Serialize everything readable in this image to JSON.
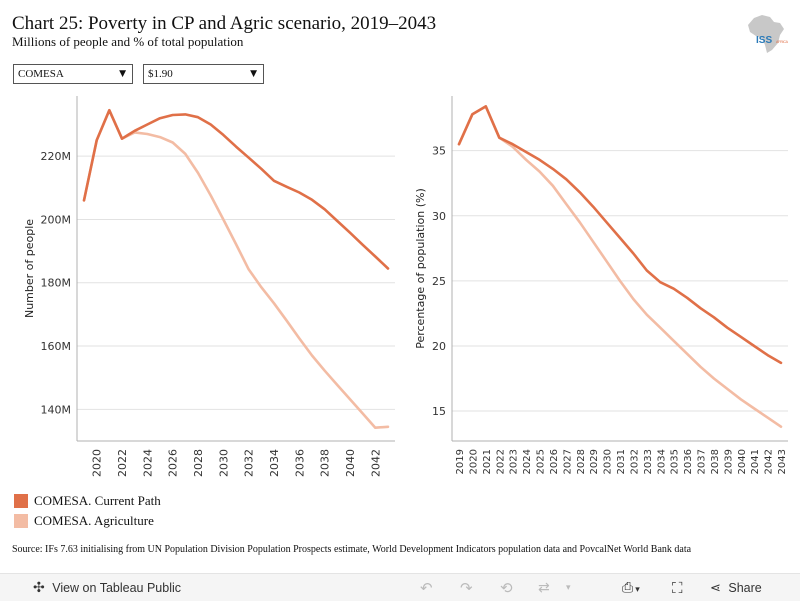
{
  "header": {
    "title": "Chart 25: Poverty in CP and Agric scenario, 2019–2043",
    "subtitle": "Millions of people and % of total population",
    "logo_text": "ISS",
    "logo_text_suffix": "AFRICA"
  },
  "filters": {
    "region": "COMESA",
    "poverty_line": "$1.90"
  },
  "colors": {
    "current_path": "#e07048",
    "agriculture": "#f3bca4",
    "gridline": "#e2e2e2",
    "axis": "#b0b0b0"
  },
  "legend": [
    {
      "label": "COMESA. Current Path",
      "color": "#e07048"
    },
    {
      "label": "COMESA. Agriculture",
      "color": "#f3bca4"
    }
  ],
  "source": "Source: IFs 7.63 initialising from UN Population Division Population Prospects estimate, World Development Indicators population data and PovcalNet World Bank data",
  "footer": {
    "view_label": "View on Tableau Public",
    "share_label": "Share"
  },
  "chart_data": [
    {
      "type": "line",
      "ylabel": "Number of people",
      "xlim": [
        2019,
        2043
      ],
      "ylim": [
        130,
        239
      ],
      "y_ticks": [
        140,
        160,
        180,
        200,
        220
      ],
      "y_tick_labels": [
        "140M",
        "160M",
        "180M",
        "200M",
        "220M"
      ],
      "x_ticks": [
        2020,
        2022,
        2024,
        2026,
        2028,
        2030,
        2032,
        2034,
        2036,
        2038,
        2040,
        2042
      ],
      "grid": true,
      "series": [
        {
          "name": "COMESA. Current Path",
          "x": [
            2019,
            2020,
            2021,
            2022,
            2023,
            2024,
            2025,
            2026,
            2027,
            2028,
            2029,
            2030,
            2031,
            2032,
            2033,
            2034,
            2035,
            2036,
            2037,
            2038,
            2039,
            2040,
            2041,
            2042,
            2043
          ],
          "values": [
            206,
            225,
            234.5,
            225.5,
            228,
            230,
            232,
            233,
            233.2,
            232.3,
            230,
            226.7,
            223,
            219.5,
            216,
            212.2,
            210.3,
            208.5,
            206.2,
            203.2,
            199.5,
            195.8,
            192,
            188.3,
            184.5
          ]
        },
        {
          "name": "COMESA. Agriculture",
          "x": [
            2019,
            2020,
            2021,
            2022,
            2023,
            2024,
            2025,
            2026,
            2027,
            2028,
            2029,
            2030,
            2031,
            2032,
            2033,
            2034,
            2035,
            2036,
            2037,
            2038,
            2039,
            2040,
            2041,
            2042,
            2043
          ],
          "values": [
            206,
            225,
            234.5,
            225.5,
            227.5,
            227,
            226,
            224.3,
            220.7,
            214.7,
            207.6,
            200,
            192.2,
            184.2,
            178.6,
            173.5,
            168,
            162.4,
            157,
            152.2,
            147.7,
            143.2,
            138.7,
            134.2,
            134.5
          ]
        }
      ]
    },
    {
      "type": "line",
      "ylabel": "Percentage of population (%)",
      "xlim": [
        2019,
        2043
      ],
      "ylim": [
        12.7,
        39.2
      ],
      "y_ticks": [
        15,
        20,
        25,
        30,
        35
      ],
      "y_tick_labels": [
        "15",
        "20",
        "25",
        "30",
        "35"
      ],
      "x_ticks": [
        2019,
        2020,
        2021,
        2022,
        2023,
        2024,
        2025,
        2026,
        2027,
        2028,
        2029,
        2030,
        2031,
        2032,
        2033,
        2034,
        2035,
        2036,
        2037,
        2038,
        2039,
        2040,
        2041,
        2042,
        2043
      ],
      "grid": true,
      "series": [
        {
          "name": "COMESA. Current Path",
          "x": [
            2019,
            2020,
            2021,
            2022,
            2023,
            2024,
            2025,
            2026,
            2027,
            2028,
            2029,
            2030,
            2031,
            2032,
            2033,
            2034,
            2035,
            2036,
            2037,
            2038,
            2039,
            2040,
            2041,
            2042,
            2043
          ],
          "values": [
            35.5,
            37.8,
            38.4,
            36.0,
            35.5,
            34.9,
            34.3,
            33.6,
            32.8,
            31.8,
            30.7,
            29.5,
            28.3,
            27.1,
            25.8,
            24.9,
            24.4,
            23.7,
            22.9,
            22.2,
            21.4,
            20.7,
            20.0,
            19.3,
            18.7
          ]
        },
        {
          "name": "COMESA. Agriculture",
          "x": [
            2019,
            2020,
            2021,
            2022,
            2023,
            2024,
            2025,
            2026,
            2027,
            2028,
            2029,
            2030,
            2031,
            2032,
            2033,
            2034,
            2035,
            2036,
            2037,
            2038,
            2039,
            2040,
            2041,
            2042,
            2043
          ],
          "values": [
            35.5,
            37.8,
            38.4,
            36.0,
            35.3,
            34.3,
            33.4,
            32.3,
            30.9,
            29.5,
            28.0,
            26.5,
            25.0,
            23.6,
            22.4,
            21.4,
            20.4,
            19.4,
            18.4,
            17.5,
            16.7,
            15.9,
            15.2,
            14.5,
            13.8
          ]
        }
      ]
    }
  ]
}
